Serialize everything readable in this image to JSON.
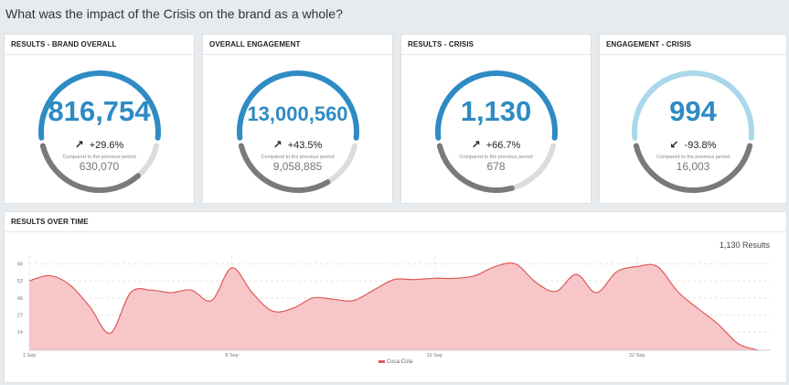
{
  "page": {
    "title": "What was the impact of the Crisis on the brand as a whole?"
  },
  "kpis": [
    {
      "header": "RESULTS - BRAND OVERALL",
      "value": "816,754",
      "change": "+29.6%",
      "direction": "up",
      "compare_label": "Compared to the previous period",
      "previous": "630,070",
      "ratio": 0.77,
      "color": "#2e8bc4"
    },
    {
      "header": "OVERALL ENGAGEMENT",
      "value": "13,000,560",
      "change": "+43.5%",
      "direction": "up",
      "compare_label": "Compared to the previous period",
      "previous": "9,058,885",
      "ratio": 0.7,
      "color": "#2e8bc4"
    },
    {
      "header": "RESULTS - CRISIS",
      "value": "1,130",
      "change": "+66.7%",
      "direction": "up",
      "compare_label": "Compared to the previous period",
      "previous": "678",
      "ratio": 0.6,
      "color": "#2e8bc4"
    },
    {
      "header": "ENGAGEMENT - CRISIS",
      "value": "994",
      "change": "-93.8%",
      "direction": "down",
      "compare_label": "Compared to the previous period",
      "previous": "16,003",
      "ratio": 1.0,
      "color": "#a9d8ea"
    }
  ],
  "timeline": {
    "header": "RESULTS OVER TIME",
    "results_label": "1,130 Results",
    "legend": "Coca-Cola",
    "colors": {
      "line": "#e05a5a",
      "fill": "#f7c6c8",
      "grid": "#e6e6e6"
    }
  },
  "chart_data": {
    "type": "area",
    "title": "RESULTS OVER TIME",
    "series": [
      {
        "name": "Coca-Cola",
        "x": [
          0,
          1,
          2,
          3,
          4,
          5,
          6,
          7,
          8,
          9,
          10,
          11,
          12,
          13,
          14,
          15,
          16,
          17,
          18,
          19,
          20,
          21,
          22,
          23,
          24,
          25,
          26,
          27,
          28,
          29,
          30,
          31,
          32,
          33,
          34,
          35,
          36
        ],
        "values": [
          53,
          57,
          50,
          33,
          13,
          44,
          46,
          44,
          46,
          38,
          63,
          44,
          30,
          32,
          40,
          39,
          38,
          46,
          54,
          54,
          55,
          55,
          57,
          64,
          66,
          52,
          45,
          58,
          44,
          60,
          64,
          64,
          45,
          32,
          20,
          5,
          0
        ]
      }
    ],
    "yticks": [
      14,
      27,
      40,
      53,
      66
    ],
    "ylim": [
      0,
      72
    ],
    "xlim": [
      0,
      36.6
    ],
    "xticks": [
      {
        "x": 0,
        "label": "1 Sep"
      },
      {
        "x": 10,
        "label": "8 Sep"
      },
      {
        "x": 20,
        "label": "15 Sep"
      },
      {
        "x": 30,
        "label": "22 Sep"
      }
    ],
    "xlabel": "",
    "ylabel": "",
    "legend": [
      "Coca-Cola"
    ],
    "grid": true
  }
}
